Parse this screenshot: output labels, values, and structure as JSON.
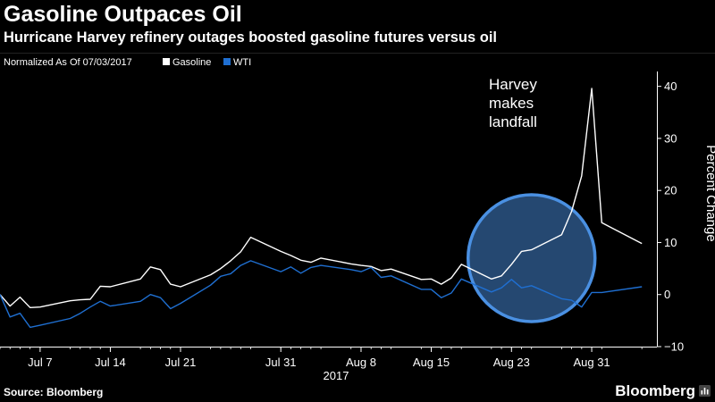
{
  "header": {
    "title": "Gasoline Outpaces Oil",
    "subtitle": "Hurricane Harvey refinery outages boosted gasoline futures versus oil"
  },
  "legend": {
    "note": "Normalized As Of 07/03/2017",
    "items": [
      {
        "label": "Gasoline",
        "color": "#ffffff"
      },
      {
        "label": "WTI",
        "color": "#1f6fd1"
      }
    ]
  },
  "chart_data": {
    "type": "line",
    "xlabel": "2017",
    "ylabel": "Percent Change",
    "ylim": [
      -10,
      42
    ],
    "yticks": [
      -10,
      0,
      10,
      20,
      30,
      40
    ],
    "grid": false,
    "legend_position": "top-left",
    "x": [
      "2017-07-03",
      "2017-07-04",
      "2017-07-05",
      "2017-07-06",
      "2017-07-07",
      "2017-07-10",
      "2017-07-11",
      "2017-07-12",
      "2017-07-13",
      "2017-07-14",
      "2017-07-17",
      "2017-07-18",
      "2017-07-19",
      "2017-07-20",
      "2017-07-21",
      "2017-07-24",
      "2017-07-25",
      "2017-07-26",
      "2017-07-27",
      "2017-07-28",
      "2017-07-31",
      "2017-08-01",
      "2017-08-02",
      "2017-08-03",
      "2017-08-04",
      "2017-08-07",
      "2017-08-08",
      "2017-08-09",
      "2017-08-10",
      "2017-08-11",
      "2017-08-14",
      "2017-08-15",
      "2017-08-16",
      "2017-08-17",
      "2017-08-18",
      "2017-08-21",
      "2017-08-22",
      "2017-08-23",
      "2017-08-24",
      "2017-08-25",
      "2017-08-28",
      "2017-08-29",
      "2017-08-30",
      "2017-08-31",
      "2017-09-01",
      "2017-09-05"
    ],
    "xticks": [
      {
        "date": "2017-07-07",
        "label": "Jul 7"
      },
      {
        "date": "2017-07-14",
        "label": "Jul 14"
      },
      {
        "date": "2017-07-21",
        "label": "Jul 21"
      },
      {
        "date": "2017-07-31",
        "label": "Jul 31"
      },
      {
        "date": "2017-08-08",
        "label": "Aug 8"
      },
      {
        "date": "2017-08-15",
        "label": "Aug 15"
      },
      {
        "date": "2017-08-23",
        "label": "Aug 23"
      },
      {
        "date": "2017-08-31",
        "label": "Aug 31"
      }
    ],
    "series": [
      {
        "name": "Gasoline",
        "color": "#ffffff",
        "values": [
          0,
          -2.2,
          -0.5,
          -2.5,
          -2.4,
          -1.2,
          -1.0,
          -0.9,
          1.6,
          1.5,
          3.0,
          5.3,
          4.8,
          2.0,
          1.5,
          3.8,
          5.0,
          6.5,
          8.2,
          11.0,
          8.3,
          7.5,
          6.6,
          6.2,
          7.0,
          5.9,
          5.6,
          5.4,
          4.6,
          4.9,
          2.9,
          3.0,
          2.0,
          3.2,
          5.8,
          3.0,
          3.6,
          5.8,
          8.3,
          8.6,
          11.5,
          16.0,
          22.8,
          39.6,
          13.8,
          9.8
        ]
      },
      {
        "name": "WTI",
        "color": "#1f6fd1",
        "values": [
          0,
          -4.3,
          -3.6,
          -6.3,
          -5.9,
          -4.6,
          -3.6,
          -2.4,
          -1.3,
          -2.2,
          -1.3,
          0.0,
          -0.6,
          -2.7,
          -1.7,
          1.8,
          3.5,
          4.0,
          5.6,
          6.5,
          4.4,
          5.3,
          4.1,
          5.2,
          5.6,
          4.8,
          4.4,
          5.2,
          3.3,
          3.6,
          1.0,
          1.0,
          -0.6,
          0.3,
          3.0,
          0.5,
          1.3,
          2.9,
          1.3,
          1.7,
          -0.8,
          -1.1,
          -2.4,
          0.4,
          0.4,
          1.5
        ]
      }
    ],
    "annotations": [
      {
        "text": "Harvey makes landfall",
        "lines": [
          "Harvey",
          "makes",
          "landfall"
        ],
        "date": "2017-08-25"
      }
    ],
    "highlight": {
      "shape": "circle",
      "center_date": "2017-08-25",
      "center_value": 7,
      "color": "#4a90e2"
    }
  },
  "footer": {
    "source": "Source: Bloomberg",
    "brand": "Bloomberg"
  }
}
